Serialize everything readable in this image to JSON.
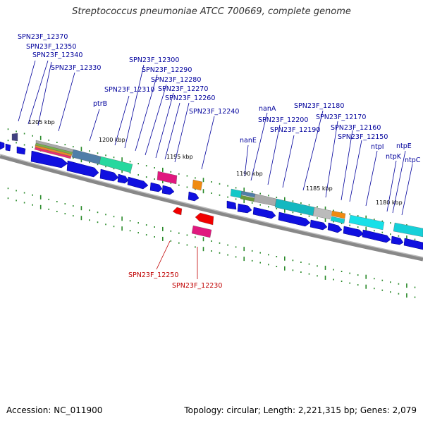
{
  "title": "Streptococcus pneumoniae ATCC 700669, complete genome",
  "accession_text": "Accession: NC_011900",
  "summary_text": "Topology: circular; Length: 2,221,315 bp; Genes: 2,079",
  "colors": {
    "forward_label": "#00009c",
    "reverse_label": "#c00000",
    "cds": "#1010e0",
    "backbone": "#888888",
    "tick": "#2a8a2a"
  },
  "scale_labels": [
    {
      "text": "1205 kbp"
    },
    {
      "text": "1200 kbp"
    },
    {
      "text": "1195 kbp"
    },
    {
      "text": "1190 kbp"
    },
    {
      "text": "1185 kbp"
    },
    {
      "text": "1180 kbp"
    }
  ],
  "forward_labels": [
    {
      "text": "SPN23F_12370"
    },
    {
      "text": "SPN23F_12350"
    },
    {
      "text": "SPN23F_12340"
    },
    {
      "text": "SPN23F_12330"
    },
    {
      "text": "ptrB"
    },
    {
      "text": "SPN23F_12310"
    },
    {
      "text": "SPN23F_12300"
    },
    {
      "text": "SPN23F_12290"
    },
    {
      "text": "SPN23F_12280"
    },
    {
      "text": "SPN23F_12270"
    },
    {
      "text": "SPN23F_12260"
    },
    {
      "text": "SPN23F_12240"
    },
    {
      "text": "nanE"
    },
    {
      "text": "nanA"
    },
    {
      "text": "SPN23F_12200"
    },
    {
      "text": "SPN23F_12190"
    },
    {
      "text": "SPN23F_12180"
    },
    {
      "text": "SPN23F_12170"
    },
    {
      "text": "SPN23F_12160"
    },
    {
      "text": "SPN23F_12150"
    },
    {
      "text": "ntpI"
    },
    {
      "text": "ntpK"
    },
    {
      "text": "ntpE"
    },
    {
      "text": "ntpC"
    }
  ],
  "reverse_labels": [
    {
      "text": "SPN23F_12250"
    },
    {
      "text": "SPN23F_12230"
    }
  ]
}
